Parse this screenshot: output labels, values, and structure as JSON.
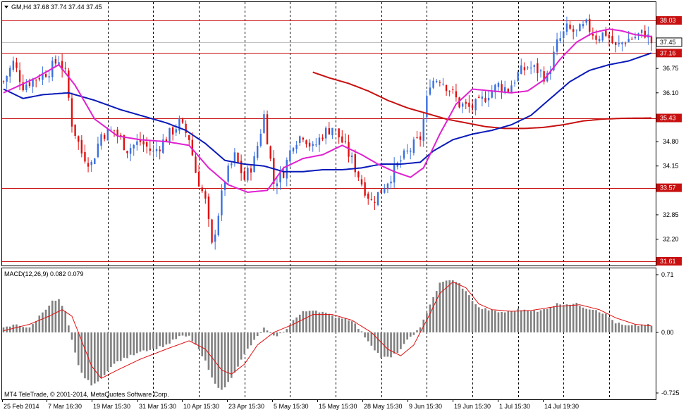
{
  "header": {
    "triangle_icon": "dropdown-triangle-icon",
    "title": "GM,H4  37.68 37.74 37.44 37.45"
  },
  "macd_header": {
    "label": "MACD(12,26,9) 0.082 0.079"
  },
  "copyright": "MT4 TeleTrade, © 2001-2014, MetaQuotes Software Corp.",
  "colors": {
    "bull": "#3a6fe0",
    "bear": "#e01010",
    "ma_fast": "#e020d0",
    "ma_mid": "#0a1ab8",
    "ma_slow": "#c81010",
    "level": "#c81010",
    "histogram": "#808080",
    "signal": "#e01010",
    "grid": "#000000"
  },
  "chart_data": [
    {
      "type": "candlestick",
      "title": "GM,H4",
      "ohlc_text": "37.68 37.74 37.44 37.45",
      "y_ticks": [
        "36.75",
        "36.10",
        "35.43",
        "34.80",
        "34.15",
        "33.57",
        "32.85",
        "32.20",
        "31.61"
      ],
      "ylim": [
        31.55,
        38.5
      ],
      "current_price": "37.45",
      "horizontal_levels": [
        38.03,
        37.16,
        35.43,
        33.57,
        31.61
      ],
      "level_labels": [
        "38.03",
        "37.16",
        "35.43",
        "33.57",
        "31.61"
      ],
      "x_ticks": [
        "25 Feb 2014",
        "7 Mar 16:30",
        "19 Mar 15:30",
        "31 Mar 15:30",
        "10 Apr 15:30",
        "23 Apr 15:30",
        "5 May 15:30",
        "15 May 15:30",
        "28 May 15:30",
        "9 Jun 15:30",
        "19 Jun 15:30",
        "1 Jul 15:30",
        "14 Jul 19:30"
      ],
      "bars": 200,
      "close_path": [
        [
          0,
          36.4
        ],
        [
          3,
          36.9
        ],
        [
          6,
          36.3
        ],
        [
          10,
          36.5
        ],
        [
          14,
          36.7
        ],
        [
          17,
          37.0
        ],
        [
          19,
          36.6
        ],
        [
          21,
          35.3
        ],
        [
          24,
          34.5
        ],
        [
          27,
          34.2
        ],
        [
          30,
          35.0
        ],
        [
          34,
          35.1
        ],
        [
          38,
          34.6
        ],
        [
          42,
          34.8
        ],
        [
          46,
          34.5
        ],
        [
          50,
          34.9
        ],
        [
          54,
          35.3
        ],
        [
          57,
          34.9
        ],
        [
          59,
          34.0
        ],
        [
          62,
          33.2
        ],
        [
          64,
          32.0
        ],
        [
          66,
          32.9
        ],
        [
          68,
          33.8
        ],
        [
          71,
          34.4
        ],
        [
          74,
          33.8
        ],
        [
          77,
          34.3
        ],
        [
          80,
          35.5
        ],
        [
          83,
          33.7
        ],
        [
          86,
          34.0
        ],
        [
          89,
          34.8
        ],
        [
          92,
          35.0
        ],
        [
          95,
          34.6
        ],
        [
          98,
          35.0
        ],
        [
          101,
          35.2
        ],
        [
          104,
          34.8
        ],
        [
          107,
          34.3
        ],
        [
          110,
          33.7
        ],
        [
          113,
          33.2
        ],
        [
          116,
          33.5
        ],
        [
          119,
          33.9
        ],
        [
          122,
          34.3
        ],
        [
          125,
          34.6
        ],
        [
          128,
          34.9
        ],
        [
          131,
          36.4
        ],
        [
          134,
          36.5
        ],
        [
          137,
          36.2
        ],
        [
          140,
          35.8
        ],
        [
          143,
          35.7
        ],
        [
          146,
          35.8
        ],
        [
          149,
          36.1
        ],
        [
          152,
          36.3
        ],
        [
          155,
          36.2
        ],
        [
          158,
          36.6
        ],
        [
          161,
          36.8
        ],
        [
          164,
          36.7
        ],
        [
          167,
          36.5
        ],
        [
          170,
          37.4
        ],
        [
          173,
          37.8
        ],
        [
          176,
          37.7
        ],
        [
          179,
          37.9
        ],
        [
          182,
          37.6
        ],
        [
          185,
          37.7
        ],
        [
          188,
          37.3
        ],
        [
          191,
          37.5
        ],
        [
          194,
          37.6
        ],
        [
          197,
          37.7
        ],
        [
          199,
          37.45
        ]
      ],
      "ma_fast": [
        [
          0,
          36.1
        ],
        [
          10,
          36.5
        ],
        [
          17,
          36.85
        ],
        [
          22,
          36.3
        ],
        [
          28,
          35.4
        ],
        [
          35,
          34.95
        ],
        [
          42,
          34.85
        ],
        [
          50,
          34.8
        ],
        [
          57,
          34.7
        ],
        [
          63,
          34.1
        ],
        [
          69,
          33.65
        ],
        [
          75,
          33.45
        ],
        [
          81,
          33.5
        ],
        [
          86,
          34.1
        ],
        [
          92,
          34.35
        ],
        [
          98,
          34.45
        ],
        [
          104,
          34.7
        ],
        [
          110,
          34.45
        ],
        [
          115,
          34.2
        ],
        [
          120,
          34.0
        ],
        [
          125,
          33.85
        ],
        [
          129,
          34.1
        ],
        [
          134,
          35.0
        ],
        [
          139,
          35.8
        ],
        [
          144,
          36.2
        ],
        [
          150,
          36.15
        ],
        [
          156,
          36.1
        ],
        [
          161,
          36.15
        ],
        [
          166,
          36.45
        ],
        [
          171,
          37.0
        ],
        [
          176,
          37.45
        ],
        [
          181,
          37.7
        ],
        [
          186,
          37.8
        ],
        [
          190,
          37.75
        ],
        [
          194,
          37.65
        ],
        [
          199,
          37.6
        ]
      ],
      "ma_mid": [
        [
          0,
          36.2
        ],
        [
          6,
          35.95
        ],
        [
          12,
          36.05
        ],
        [
          20,
          36.1
        ],
        [
          28,
          35.9
        ],
        [
          36,
          35.65
        ],
        [
          44,
          35.45
        ],
        [
          50,
          35.3
        ],
        [
          56,
          35.1
        ],
        [
          62,
          34.75
        ],
        [
          68,
          34.3
        ],
        [
          74,
          34.2
        ],
        [
          80,
          34.15
        ],
        [
          86,
          34.0
        ],
        [
          92,
          34.0
        ],
        [
          98,
          34.05
        ],
        [
          104,
          34.05
        ],
        [
          110,
          34.1
        ],
        [
          116,
          34.2
        ],
        [
          122,
          34.2
        ],
        [
          128,
          34.25
        ],
        [
          132,
          34.55
        ],
        [
          138,
          34.85
        ],
        [
          144,
          35.0
        ],
        [
          150,
          35.1
        ],
        [
          156,
          35.25
        ],
        [
          162,
          35.5
        ],
        [
          168,
          35.95
        ],
        [
          174,
          36.4
        ],
        [
          180,
          36.7
        ],
        [
          186,
          36.85
        ],
        [
          192,
          36.95
        ],
        [
          199,
          37.16
        ]
      ],
      "ma_slow": [
        [
          95,
          36.65
        ],
        [
          100,
          36.5
        ],
        [
          106,
          36.35
        ],
        [
          112,
          36.15
        ],
        [
          118,
          35.9
        ],
        [
          124,
          35.7
        ],
        [
          130,
          35.55
        ],
        [
          136,
          35.4
        ],
        [
          142,
          35.3
        ],
        [
          148,
          35.2
        ],
        [
          154,
          35.15
        ],
        [
          160,
          35.15
        ],
        [
          166,
          35.18
        ],
        [
          172,
          35.25
        ],
        [
          178,
          35.35
        ],
        [
          184,
          35.4
        ],
        [
          190,
          35.42
        ],
        [
          199,
          35.43
        ]
      ]
    },
    {
      "type": "bar",
      "title": "MACD(12,26,9)",
      "values_text": "0.082 0.079",
      "y_ticks": [
        "0.71",
        "0.00",
        "-0.725"
      ],
      "ylim": [
        -0.76,
        0.76
      ],
      "histogram_path": [
        [
          0,
          0.05
        ],
        [
          4,
          0.1
        ],
        [
          8,
          0.05
        ],
        [
          12,
          0.25
        ],
        [
          15,
          0.38
        ],
        [
          17,
          0.4
        ],
        [
          19,
          0.25
        ],
        [
          21,
          -0.1
        ],
        [
          23,
          -0.4
        ],
        [
          25,
          -0.55
        ],
        [
          27,
          -0.62
        ],
        [
          29,
          -0.6
        ],
        [
          32,
          -0.45
        ],
        [
          35,
          -0.35
        ],
        [
          38,
          -0.3
        ],
        [
          42,
          -0.22
        ],
        [
          46,
          -0.2
        ],
        [
          50,
          -0.15
        ],
        [
          54,
          -0.05
        ],
        [
          57,
          -0.05
        ],
        [
          59,
          -0.15
        ],
        [
          62,
          -0.35
        ],
        [
          64,
          -0.55
        ],
        [
          67,
          -0.7
        ],
        [
          69,
          -0.6
        ],
        [
          72,
          -0.4
        ],
        [
          75,
          -0.2
        ],
        [
          78,
          -0.05
        ],
        [
          80,
          0.05
        ],
        [
          83,
          -0.05
        ],
        [
          86,
          0.0
        ],
        [
          89,
          0.15
        ],
        [
          92,
          0.25
        ],
        [
          95,
          0.28
        ],
        [
          98,
          0.25
        ],
        [
          101,
          0.2
        ],
        [
          104,
          0.18
        ],
        [
          107,
          0.15
        ],
        [
          110,
          0.0
        ],
        [
          113,
          -0.15
        ],
        [
          116,
          -0.3
        ],
        [
          119,
          -0.3
        ],
        [
          122,
          -0.2
        ],
        [
          125,
          -0.05
        ],
        [
          128,
          0.05
        ],
        [
          131,
          0.35
        ],
        [
          134,
          0.6
        ],
        [
          137,
          0.65
        ],
        [
          140,
          0.6
        ],
        [
          143,
          0.45
        ],
        [
          146,
          0.3
        ],
        [
          149,
          0.28
        ],
        [
          152,
          0.25
        ],
        [
          155,
          0.25
        ],
        [
          158,
          0.28
        ],
        [
          161,
          0.28
        ],
        [
          164,
          0.25
        ],
        [
          167,
          0.3
        ],
        [
          170,
          0.35
        ],
        [
          173,
          0.35
        ],
        [
          176,
          0.35
        ],
        [
          179,
          0.3
        ],
        [
          182,
          0.28
        ],
        [
          185,
          0.22
        ],
        [
          188,
          0.12
        ],
        [
          191,
          0.08
        ],
        [
          194,
          0.08
        ],
        [
          197,
          0.1
        ],
        [
          199,
          0.08
        ]
      ],
      "signal_path": [
        [
          0,
          0.02
        ],
        [
          8,
          0.1
        ],
        [
          14,
          0.2
        ],
        [
          18,
          0.28
        ],
        [
          21,
          0.2
        ],
        [
          24,
          -0.1
        ],
        [
          27,
          -0.4
        ],
        [
          30,
          -0.55
        ],
        [
          35,
          -0.45
        ],
        [
          42,
          -0.32
        ],
        [
          50,
          -0.2
        ],
        [
          57,
          -0.1
        ],
        [
          62,
          -0.2
        ],
        [
          67,
          -0.45
        ],
        [
          70,
          -0.5
        ],
        [
          74,
          -0.38
        ],
        [
          78,
          -0.15
        ],
        [
          83,
          0.0
        ],
        [
          89,
          0.1
        ],
        [
          95,
          0.22
        ],
        [
          101,
          0.22
        ],
        [
          107,
          0.15
        ],
        [
          113,
          0.0
        ],
        [
          118,
          -0.2
        ],
        [
          122,
          -0.28
        ],
        [
          126,
          -0.15
        ],
        [
          130,
          0.15
        ],
        [
          134,
          0.48
        ],
        [
          138,
          0.62
        ],
        [
          142,
          0.55
        ],
        [
          146,
          0.35
        ],
        [
          150,
          0.28
        ],
        [
          156,
          0.26
        ],
        [
          162,
          0.27
        ],
        [
          170,
          0.32
        ],
        [
          177,
          0.34
        ],
        [
          183,
          0.28
        ],
        [
          188,
          0.18
        ],
        [
          194,
          0.1
        ],
        [
          199,
          0.08
        ]
      ]
    }
  ]
}
